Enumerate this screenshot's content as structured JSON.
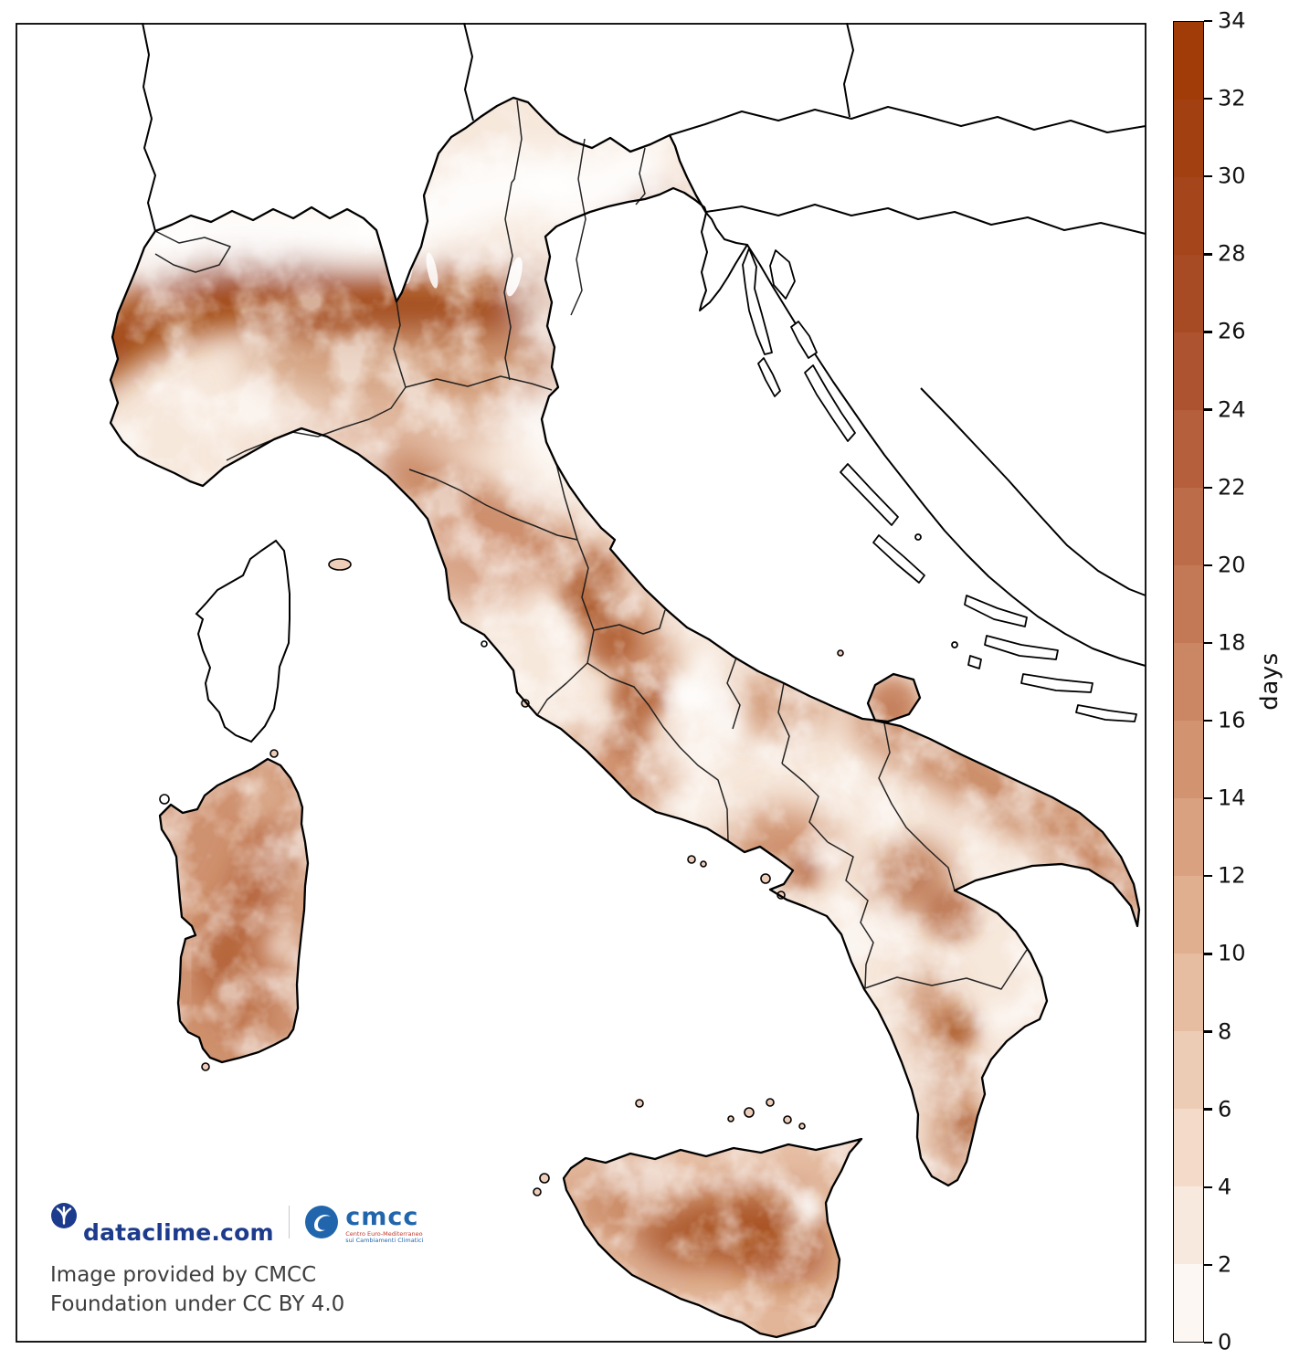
{
  "colorbar": {
    "unit_label": "days",
    "min": 0,
    "max": 34,
    "tick_step": 2,
    "ticks": [
      0,
      2,
      4,
      6,
      8,
      10,
      12,
      14,
      16,
      18,
      20,
      22,
      24,
      26,
      28,
      30,
      32,
      34
    ],
    "band_colors": [
      "#fdf7f3",
      "#f8e9de",
      "#f3dac9",
      "#edccb5",
      "#e7bda1",
      "#e0af90",
      "#d9a180",
      "#d29371",
      "#cb8663",
      "#c47956",
      "#bd6c49",
      "#b55f3c",
      "#ae5330",
      "#a74b25",
      "#a4451b",
      "#a24012",
      "#a13c08"
    ]
  },
  "map": {
    "type": "heatmap",
    "area_shown": "Italy with regional boundaries, surrounding countries shown without data",
    "sea_color": "#ffffff",
    "no_data_land_color": "#ffffff",
    "land_base_color": "#f7e8dc",
    "heat_max_color": "#9c3f0c",
    "boundary_color": "#000000",
    "visual_values_days": {
      "alpine_foothills_arc_northwest": "24-34",
      "high_alps": "0-6",
      "po_valley_plain": "14-20",
      "apennines_central_italy": "14-26 mottled with 0-8 peaks",
      "puglia": "14-18",
      "basilicata_calabria": "10-26",
      "sicily_interior": "20-30",
      "sicily_etna": "0-4",
      "sardinia": "12-22"
    }
  },
  "footer": {
    "dataclime_label": "dataclime.com",
    "cmcc_label": "cmcc",
    "cmcc_tagline_line1": "Centro Euro-Mediterraneo",
    "cmcc_tagline_line2": "sui Cambiamenti Climatici",
    "attribution_line1": "Image provided by CMCC",
    "attribution_line2": "Foundation under CC BY 4.0",
    "dataclime_color": "#1d3b8c",
    "cmcc_color": "#2166ac"
  }
}
